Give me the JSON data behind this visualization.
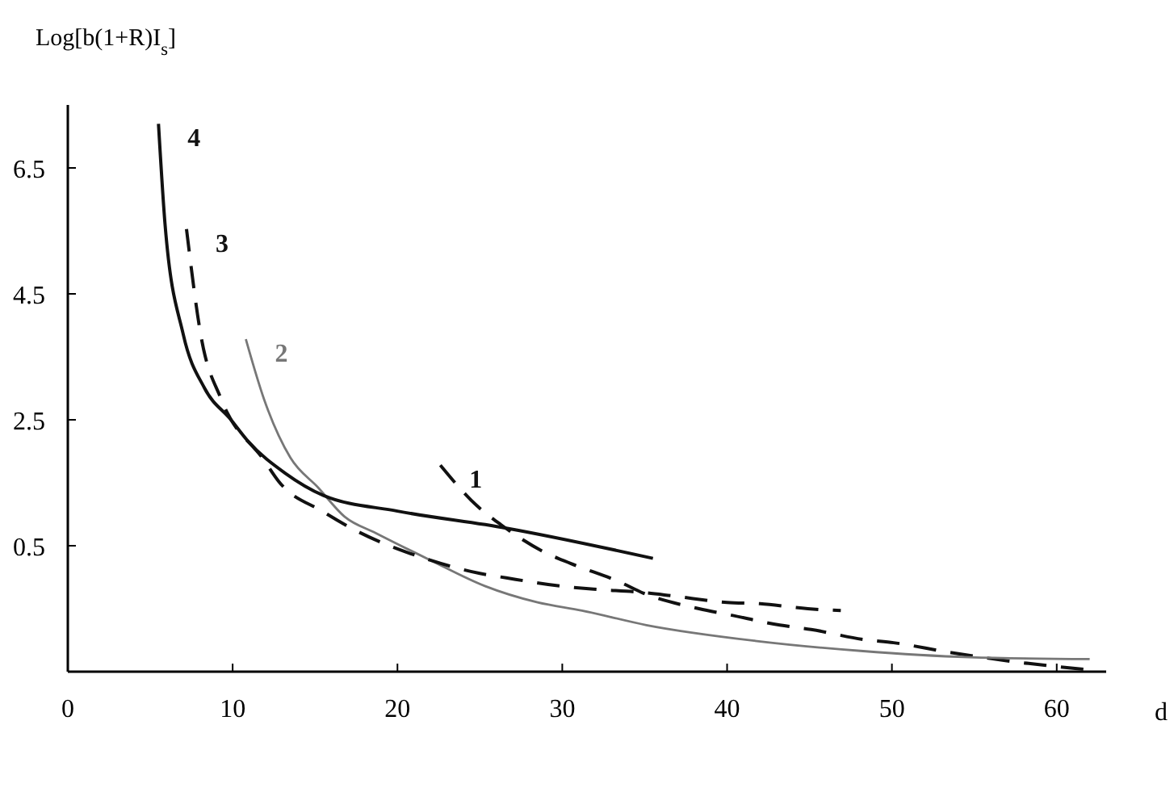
{
  "chart_data": {
    "type": "line",
    "xlabel": "d",
    "ylabel": "Log[b(1+R)I$_{s}$]",
    "xlim": [
      0,
      63
    ],
    "ylim": [
      -1.5,
      7.5
    ],
    "xticks": [
      0,
      10,
      20,
      30,
      40,
      50,
      60
    ],
    "yticks": [
      0.5,
      2.5,
      4.5,
      6.5
    ],
    "grid": false,
    "marker": "none",
    "series": [
      {
        "name": "1",
        "color": "#111111",
        "line_style": "dashed",
        "x": [
          22.6,
          24.8,
          26.3,
          28.9,
          30.5,
          33.6,
          34.8,
          38.3,
          40.2,
          43.2,
          45.1,
          48.3,
          50.1,
          53.4,
          58.3,
          62
        ],
        "values": [
          1.78,
          1.14,
          0.83,
          0.4,
          0.22,
          -0.09,
          -0.24,
          -0.5,
          -0.6,
          -0.76,
          -0.83,
          -0.99,
          -1.04,
          -1.19,
          -1.37,
          -1.47
        ]
      },
      {
        "name": "2",
        "color": "#777777",
        "line_style": "solid",
        "x": [
          10.8,
          11.9,
          13.5,
          15.2,
          16.8,
          18.7,
          22,
          25.3,
          28.5,
          31.2,
          35.1,
          41.7,
          48.1,
          54.7,
          62
        ],
        "values": [
          3.78,
          2.83,
          1.9,
          1.42,
          0.96,
          0.7,
          0.27,
          -0.14,
          -0.4,
          -0.53,
          -0.76,
          -1.01,
          -1.17,
          -1.27,
          -1.3
        ]
      },
      {
        "name": "3",
        "color": "#111111",
        "line_style": "dashed",
        "x": [
          7.2,
          8.1,
          9.3,
          11.9,
          12.8,
          15.5,
          17.2,
          22,
          25,
          26.6,
          29.9,
          31.9,
          34.8,
          36.8,
          40,
          42,
          44.9,
          46.9
        ],
        "values": [
          5.53,
          3.8,
          2.83,
          1.86,
          1.52,
          1.04,
          0.78,
          0.27,
          0.06,
          -0.01,
          -0.14,
          -0.19,
          -0.24,
          -0.3,
          -0.4,
          -0.42,
          -0.5,
          -0.53
        ]
      },
      {
        "name": "4",
        "color": "#111111",
        "line_style": "solid",
        "x": [
          5.5,
          5.9,
          7.0,
          8.3,
          9.9,
          10.9,
          13.2,
          15.5,
          20,
          26.6,
          35.5
        ],
        "values": [
          7.2,
          5.6,
          3.86,
          3.0,
          2.5,
          2.17,
          1.65,
          1.3,
          1.05,
          0.78,
          0.3
        ]
      }
    ]
  }
}
